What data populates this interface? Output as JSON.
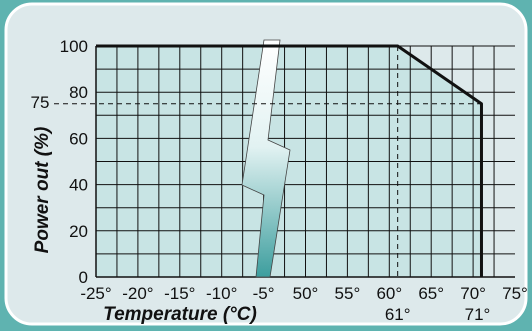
{
  "chart_data": {
    "type": "area",
    "xlabel": "Temperature (°C)",
    "ylabel": "Power out (%)",
    "x_ticks": [
      "-25°",
      "-20°",
      "-15°",
      "-10°",
      "-5°",
      "50°",
      "55°",
      "60°",
      "65°",
      "70°",
      "75°"
    ],
    "y_ticks": [
      0,
      20,
      40,
      60,
      80,
      100
    ],
    "ylim": [
      0,
      100
    ],
    "axis_break": "between -5° and 50°",
    "series": [
      {
        "points": [
          {
            "x": "-25°",
            "y": 100
          },
          {
            "x": "61°",
            "y": 100
          },
          {
            "x": "71°",
            "y": 75
          }
        ]
      }
    ],
    "reference_markers": {
      "y": {
        "value": 75,
        "label": "75"
      },
      "x": [
        {
          "value": 61,
          "label": "61°"
        },
        {
          "value": 71,
          "label": "71°"
        }
      ]
    },
    "grid": true
  },
  "colors": {
    "background": "#5fb3b0",
    "panel": "#dde9eb",
    "panel_border": "#ffffff",
    "fill": "#c8e4e4",
    "line": "#111111",
    "grid": "#111111",
    "break_fill": "#ffffff",
    "break_accent": "#4fa8a8"
  }
}
